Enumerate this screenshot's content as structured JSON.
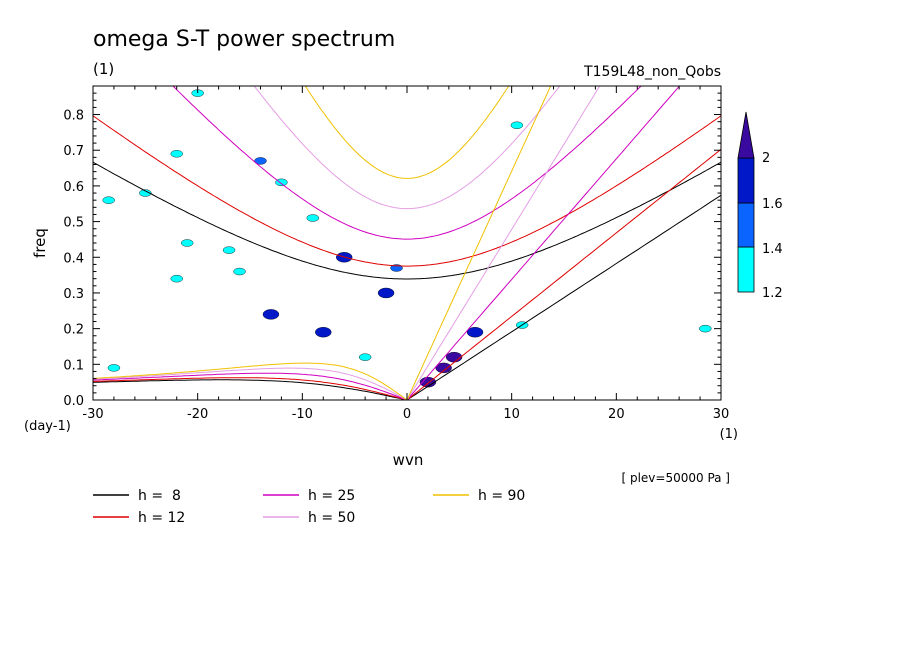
{
  "chart_data": {
    "type": "heatmap",
    "title": "omega S-T power spectrum",
    "subtitle_left": "(1)",
    "subtitle_right": "T159L48_non_Qobs",
    "xlabel": "wvn",
    "ylabel": "freq",
    "x_unit_label": "(1)",
    "y_unit_label": "(day-1)",
    "footnote": "[ plev=50000 Pa ]",
    "xlim": [
      -30,
      30
    ],
    "ylim": [
      0,
      0.88
    ],
    "x_ticks": [
      -30,
      -20,
      -10,
      0,
      10,
      20,
      30
    ],
    "x_tick_labels": [
      "-30",
      "-20",
      "-10",
      "0",
      "10",
      "20",
      "30"
    ],
    "y_ticks": [
      0,
      0.1,
      0.2,
      0.3,
      0.4,
      0.5,
      0.6,
      0.7,
      0.8
    ],
    "y_tick_labels": [
      "0.0",
      "0.1",
      "0.2",
      "0.3",
      "0.4",
      "0.5",
      "0.6",
      "0.7",
      "0.8"
    ],
    "colorbar": {
      "levels": [
        1.2,
        1.4,
        1.6,
        2
      ],
      "level_labels": [
        "1.2",
        "1.4",
        "1.6",
        "2"
      ],
      "colors": [
        "#00ffff",
        "#0a64ff",
        "#0018c8",
        "#3a0aa0"
      ]
    },
    "dispersion_legend": [
      {
        "label": "h =  8",
        "h": 8,
        "color": "#000000"
      },
      {
        "label": "h = 12",
        "h": 12,
        "color": "#e00000"
      },
      {
        "label": "h = 25",
        "h": 25,
        "color": "#d000c0"
      },
      {
        "label": "h = 50",
        "h": 50,
        "color": "#e49ee4"
      },
      {
        "label": "h = 90",
        "h": 90,
        "color": "#f0c000"
      }
    ],
    "contour_regions": [
      {
        "k": 3.5,
        "f": 0.09,
        "level": 2
      },
      {
        "k": 4.5,
        "f": 0.12,
        "level": 2
      },
      {
        "k": 2.0,
        "f": 0.05,
        "level": 2
      },
      {
        "k": 6.5,
        "f": 0.19,
        "level": 1.6
      },
      {
        "k": -2.0,
        "f": 0.3,
        "level": 1.6
      },
      {
        "k": -8.0,
        "f": 0.19,
        "level": 1.6
      },
      {
        "k": -13.0,
        "f": 0.24,
        "level": 1.6
      },
      {
        "k": -6.0,
        "f": 0.4,
        "level": 1.6
      },
      {
        "k": -1.0,
        "f": 0.37,
        "level": 1.4
      },
      {
        "k": -14.0,
        "f": 0.67,
        "level": 1.4
      },
      {
        "k": -22.0,
        "f": 0.69,
        "level": 1.2
      },
      {
        "k": -12.0,
        "f": 0.61,
        "level": 1.2
      },
      {
        "k": -21.0,
        "f": 0.44,
        "level": 1.2
      },
      {
        "k": -9.0,
        "f": 0.51,
        "level": 1.2
      },
      {
        "k": -16.0,
        "f": 0.36,
        "level": 1.2
      },
      {
        "k": -17.0,
        "f": 0.42,
        "level": 1.2
      },
      {
        "k": -22.0,
        "f": 0.34,
        "level": 1.2
      },
      {
        "k": -20.0,
        "f": 0.86,
        "level": 1.2
      },
      {
        "k": 11.0,
        "f": 0.21,
        "level": 1.2
      },
      {
        "k": 10.5,
        "f": 0.77,
        "level": 1.2
      },
      {
        "k": 28.5,
        "f": 0.2,
        "level": 1.2
      },
      {
        "k": -4.0,
        "f": 0.12,
        "level": 1.2
      },
      {
        "k": -28.0,
        "f": 0.09,
        "level": 1.2
      },
      {
        "k": -25.0,
        "f": 0.58,
        "level": 1.2
      },
      {
        "k": -28.5,
        "f": 0.56,
        "level": 1.2
      }
    ]
  }
}
